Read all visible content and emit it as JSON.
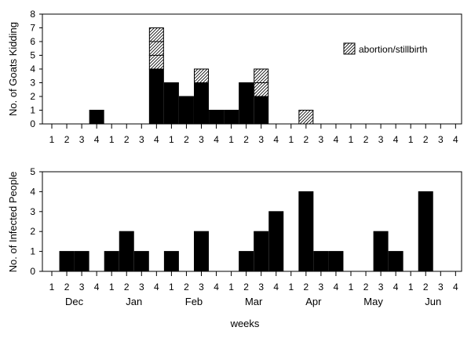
{
  "chart_data": [
    {
      "type": "bar",
      "stacked": true,
      "ylabel": "No. of Goats Kidding",
      "ylim": [
        0,
        8
      ],
      "yticks": [
        0,
        1,
        2,
        3,
        4,
        5,
        6,
        7,
        8
      ],
      "categories": [
        "1",
        "2",
        "3",
        "4",
        "1",
        "2",
        "3",
        "4",
        "1",
        "2",
        "3",
        "4",
        "1",
        "2",
        "3",
        "4",
        "1",
        "2",
        "3",
        "4",
        "1",
        "2",
        "3",
        "4",
        "1",
        "2",
        "3",
        "4"
      ],
      "series": [
        {
          "name": "",
          "color": "#000000",
          "pattern": "solid",
          "values": [
            0,
            0,
            0,
            1,
            0,
            0,
            0,
            4,
            3,
            2,
            3,
            1,
            1,
            3,
            2,
            0,
            0,
            0,
            0,
            0,
            0,
            0,
            0,
            0,
            0,
            0,
            0,
            0
          ]
        },
        {
          "name": "abortion/stillbirth",
          "color": "#000000",
          "pattern": "hatched",
          "values": [
            0,
            0,
            0,
            0,
            0,
            0,
            0,
            3,
            0,
            0,
            1,
            0,
            0,
            0,
            2,
            0,
            0,
            1,
            0,
            0,
            0,
            0,
            0,
            0,
            0,
            0,
            0,
            0
          ]
        }
      ],
      "legend": {
        "label": "abortion/stillbirth",
        "position": "top-right"
      }
    },
    {
      "type": "bar",
      "ylabel": "No. of Infected People",
      "xlabel": "weeks",
      "ylim": [
        0,
        5
      ],
      "yticks": [
        0,
        1,
        2,
        3,
        4,
        5
      ],
      "categories": [
        "1",
        "2",
        "3",
        "4",
        "1",
        "2",
        "3",
        "4",
        "1",
        "2",
        "3",
        "4",
        "1",
        "2",
        "3",
        "4",
        "1",
        "2",
        "3",
        "4",
        "1",
        "2",
        "3",
        "4",
        "1",
        "2",
        "3",
        "4"
      ],
      "months": [
        "Dec",
        "Jan",
        "Feb",
        "Mar",
        "Apr",
        "May",
        "Jun"
      ],
      "series": [
        {
          "name": "",
          "color": "#000000",
          "values": [
            0,
            1,
            1,
            0,
            1,
            2,
            1,
            0,
            1,
            0,
            2,
            0,
            0,
            1,
            2,
            3,
            0,
            4,
            1,
            1,
            0,
            0,
            2,
            1,
            0,
            4,
            0,
            0
          ]
        }
      ]
    }
  ]
}
